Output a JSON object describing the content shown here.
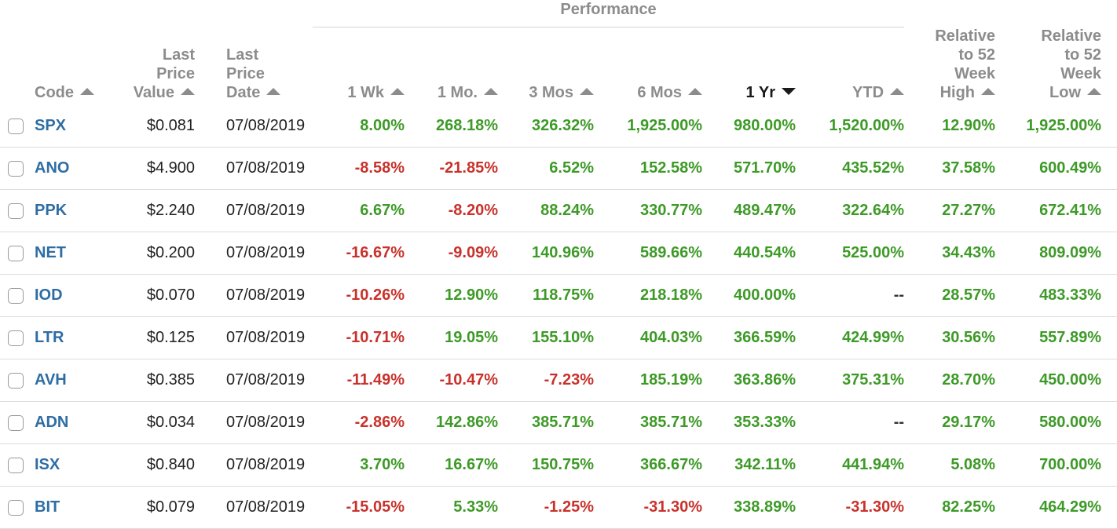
{
  "colors": {
    "positive": "#3d9a27",
    "negative": "#c8322b",
    "link": "#2e6da4",
    "header": "#8c8c8c"
  },
  "group_header": "Performance",
  "columns": {
    "code": "Code",
    "last_price_value": "Last\nPrice\nValue",
    "last_price_date": "Last\nPrice\nDate",
    "wk1": "1 Wk",
    "mo1": "1 Mo.",
    "mo3": "3 Mos",
    "mo6": "6 Mos",
    "yr1": "1 Yr",
    "ytd": "YTD",
    "rel_high": "Relative\nto 52\nWeek\nHigh",
    "rel_low": "Relative\nto 52\nWeek\nLow"
  },
  "sort_icons": {
    "default": "sort-up-icon",
    "active": "sort-down-icon",
    "active_column": "1 Yr"
  },
  "rows": [
    {
      "code": "SPX",
      "price": "$0.081",
      "date": "07/08/2019",
      "wk1": "8.00%",
      "mo1": "268.18%",
      "mo3": "326.32%",
      "mo6": "1,925.00%",
      "yr1": "980.00%",
      "ytd": "1,520.00%",
      "high": "12.90%",
      "low": "1,925.00%"
    },
    {
      "code": "ANO",
      "price": "$4.900",
      "date": "07/08/2019",
      "wk1": "-8.58%",
      "mo1": "-21.85%",
      "mo3": "6.52%",
      "mo6": "152.58%",
      "yr1": "571.70%",
      "ytd": "435.52%",
      "high": "37.58%",
      "low": "600.49%"
    },
    {
      "code": "PPK",
      "price": "$2.240",
      "date": "07/08/2019",
      "wk1": "6.67%",
      "mo1": "-8.20%",
      "mo3": "88.24%",
      "mo6": "330.77%",
      "yr1": "489.47%",
      "ytd": "322.64%",
      "high": "27.27%",
      "low": "672.41%"
    },
    {
      "code": "NET",
      "price": "$0.200",
      "date": "07/08/2019",
      "wk1": "-16.67%",
      "mo1": "-9.09%",
      "mo3": "140.96%",
      "mo6": "589.66%",
      "yr1": "440.54%",
      "ytd": "525.00%",
      "high": "34.43%",
      "low": "809.09%"
    },
    {
      "code": "IOD",
      "price": "$0.070",
      "date": "07/08/2019",
      "wk1": "-10.26%",
      "mo1": "12.90%",
      "mo3": "118.75%",
      "mo6": "218.18%",
      "yr1": "400.00%",
      "ytd": "--",
      "high": "28.57%",
      "low": "483.33%"
    },
    {
      "code": "LTR",
      "price": "$0.125",
      "date": "07/08/2019",
      "wk1": "-10.71%",
      "mo1": "19.05%",
      "mo3": "155.10%",
      "mo6": "404.03%",
      "yr1": "366.59%",
      "ytd": "424.99%",
      "high": "30.56%",
      "low": "557.89%"
    },
    {
      "code": "AVH",
      "price": "$0.385",
      "date": "07/08/2019",
      "wk1": "-11.49%",
      "mo1": "-10.47%",
      "mo3": "-7.23%",
      "mo6": "185.19%",
      "yr1": "363.86%",
      "ytd": "375.31%",
      "high": "28.70%",
      "low": "450.00%"
    },
    {
      "code": "ADN",
      "price": "$0.034",
      "date": "07/08/2019",
      "wk1": "-2.86%",
      "mo1": "142.86%",
      "mo3": "385.71%",
      "mo6": "385.71%",
      "yr1": "353.33%",
      "ytd": "--",
      "high": "29.17%",
      "low": "580.00%"
    },
    {
      "code": "ISX",
      "price": "$0.840",
      "date": "07/08/2019",
      "wk1": "3.70%",
      "mo1": "16.67%",
      "mo3": "150.75%",
      "mo6": "366.67%",
      "yr1": "342.11%",
      "ytd": "441.94%",
      "high": "5.08%",
      "low": "700.00%"
    },
    {
      "code": "BIT",
      "price": "$0.079",
      "date": "07/08/2019",
      "wk1": "-15.05%",
      "mo1": "5.33%",
      "mo3": "-1.25%",
      "mo6": "-31.30%",
      "yr1": "338.89%",
      "ytd": "-31.30%",
      "high": "82.25%",
      "low": "464.29%"
    }
  ]
}
